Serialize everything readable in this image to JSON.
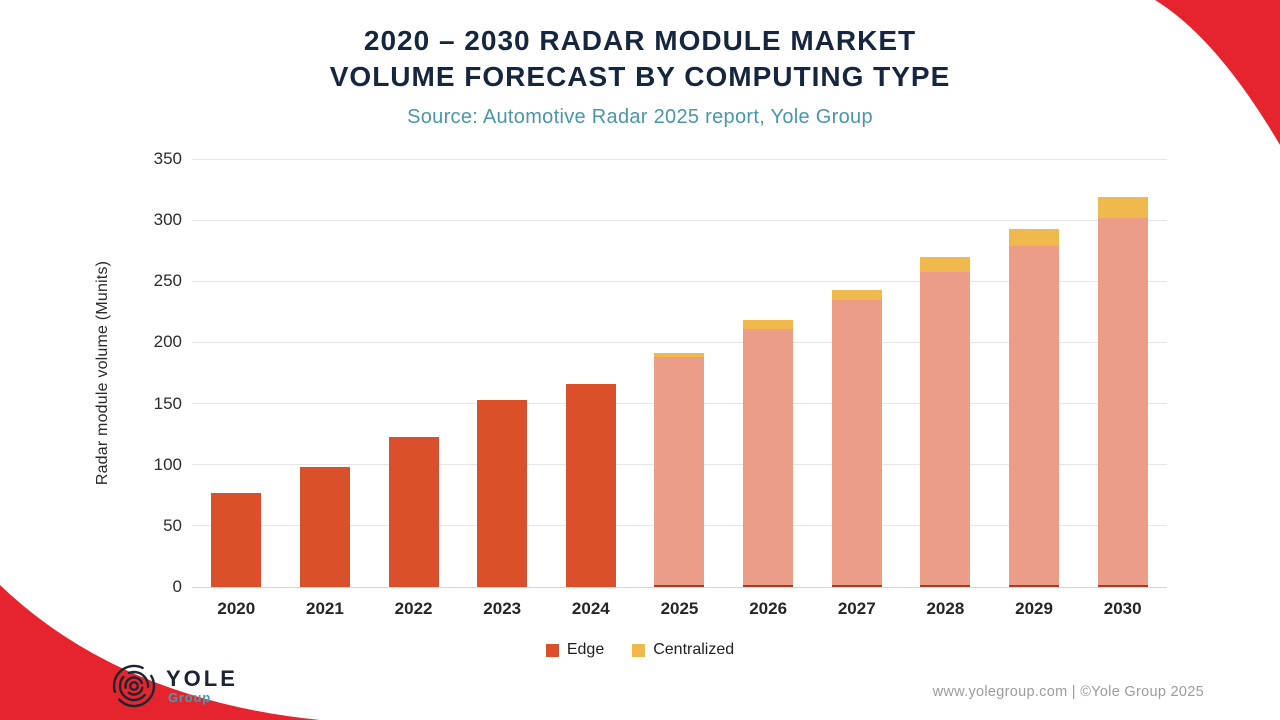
{
  "header": {
    "title_line1": "2020 – 2030 RADAR MODULE MARKET",
    "title_line2": "VOLUME FORECAST BY COMPUTING TYPE",
    "subtitle": "Source: Automotive Radar 2025 report, Yole Group",
    "title_color": "#16263E",
    "subtitle_color": "#4A96AB"
  },
  "chart_data": {
    "type": "bar",
    "stacked": true,
    "title": "2020 – 2030 RADAR MODULE MARKET VOLUME FORECAST BY COMPUTING TYPE",
    "categories": [
      "2020",
      "2021",
      "2022",
      "2023",
      "2024",
      "2025",
      "2026",
      "2027",
      "2028",
      "2029",
      "2030"
    ],
    "series": [
      {
        "name": "Edge",
        "values": [
          77,
          98,
          123,
          153,
          166,
          188,
          211,
          235,
          258,
          279,
          302
        ]
      },
      {
        "name": "Centralized",
        "values": [
          0,
          0,
          0,
          0,
          0,
          3,
          7,
          8,
          12,
          14,
          17
        ]
      }
    ],
    "totals": [
      77,
      98,
      123,
      153,
      166,
      191,
      218,
      243,
      270,
      293,
      319
    ],
    "xlabel": "",
    "ylabel": "Radar module volume (Munits)",
    "ylim": [
      0,
      350
    ],
    "yticks": [
      0,
      50,
      100,
      150,
      200,
      250,
      300,
      350
    ],
    "grid": true,
    "legend_position": "bottom",
    "forecast_start_index": 5,
    "colors": {
      "edge_actual": "#D9502A",
      "edge_forecast": "#EC9D87",
      "centralized": "#F0B94E",
      "forecast_base_line": "#A83A28",
      "gridline": "#E6E6E6",
      "axis_line": "#D6D6D6"
    }
  },
  "legend": {
    "items": [
      {
        "label": "Edge",
        "color": "#D9502A"
      },
      {
        "label": "Centralized",
        "color": "#F0B94E"
      }
    ]
  },
  "footer": {
    "logo_name": "YOLE",
    "logo_subtext": "Group",
    "credit": "www.yolegroup.com | ©Yole Group 2025"
  },
  "decor": {
    "corner_color": "#E5242E"
  }
}
